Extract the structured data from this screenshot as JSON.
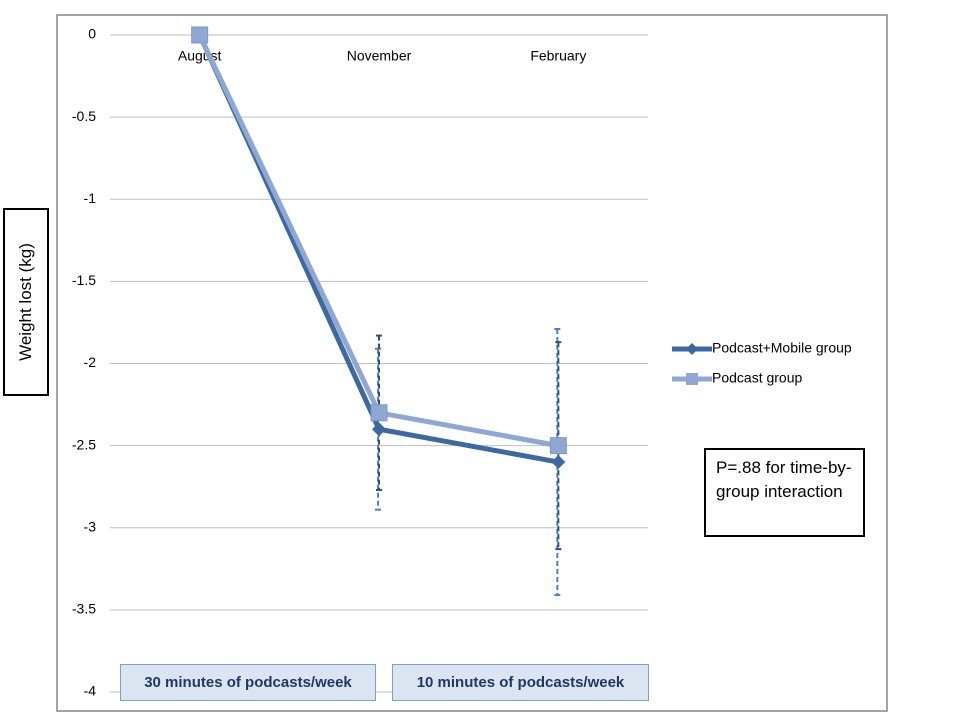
{
  "chart_data": {
    "type": "line",
    "y_label": "Weight lost (kg)",
    "categories": [
      "August",
      "November",
      "February"
    ],
    "series": [
      {
        "name": "Podcast+Mobile group",
        "color": "#3d69a3",
        "marker": "diamond",
        "values": [
          0,
          -2.4,
          -2.6
        ],
        "errors": [
          null,
          0.49,
          0.81
        ]
      },
      {
        "name": "Podcast group",
        "color": "#8ea7d3",
        "marker": "square",
        "values": [
          0,
          -2.3,
          -2.5
        ],
        "errors": [
          null,
          0.47,
          0.63
        ]
      }
    ],
    "ylim": [
      -4,
      0
    ],
    "yticks": [
      0,
      -0.5,
      -1,
      -1.5,
      -2,
      -2.5,
      -3,
      -3.5,
      -4
    ],
    "grid": true,
    "legend": "right",
    "annotation": "P=.88 for time-by-group interaction",
    "period_labels": [
      "30 minutes of podcasts/week",
      "10 minutes of podcasts/week"
    ]
  }
}
